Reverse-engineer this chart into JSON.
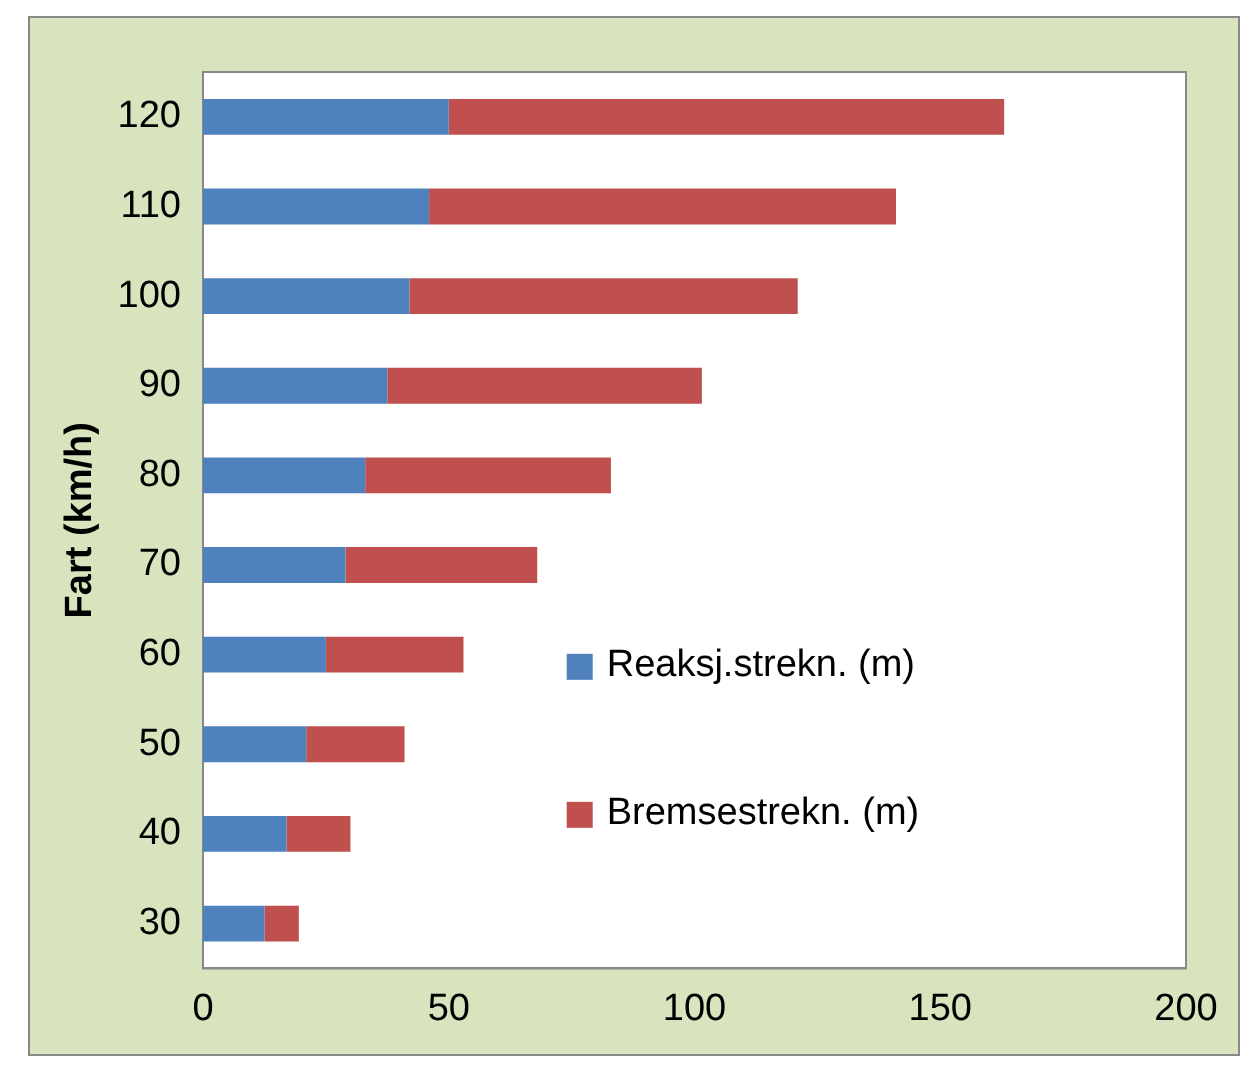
{
  "chart_data": {
    "type": "bar",
    "orientation": "horizontal",
    "stacked": true,
    "ylabel": "Fart (km/h)",
    "categories": [
      "120",
      "110",
      "100",
      "90",
      "80",
      "70",
      "60",
      "50",
      "40",
      "30"
    ],
    "series": [
      {
        "name": "Reaksj.strekn. (m)",
        "color": "#4f81bd",
        "values": [
          50,
          46,
          42,
          37.5,
          33,
          29,
          25,
          21,
          17,
          12.5
        ]
      },
      {
        "name": "Bremsestrekn. (m)",
        "color": "#c0504d",
        "values": [
          113,
          95,
          79,
          64,
          50,
          39,
          28,
          20,
          13,
          7
        ]
      }
    ],
    "xlim": [
      0,
      200
    ],
    "xticks": [
      0,
      50,
      100,
      150,
      200
    ],
    "grid": false,
    "legend": "right"
  }
}
